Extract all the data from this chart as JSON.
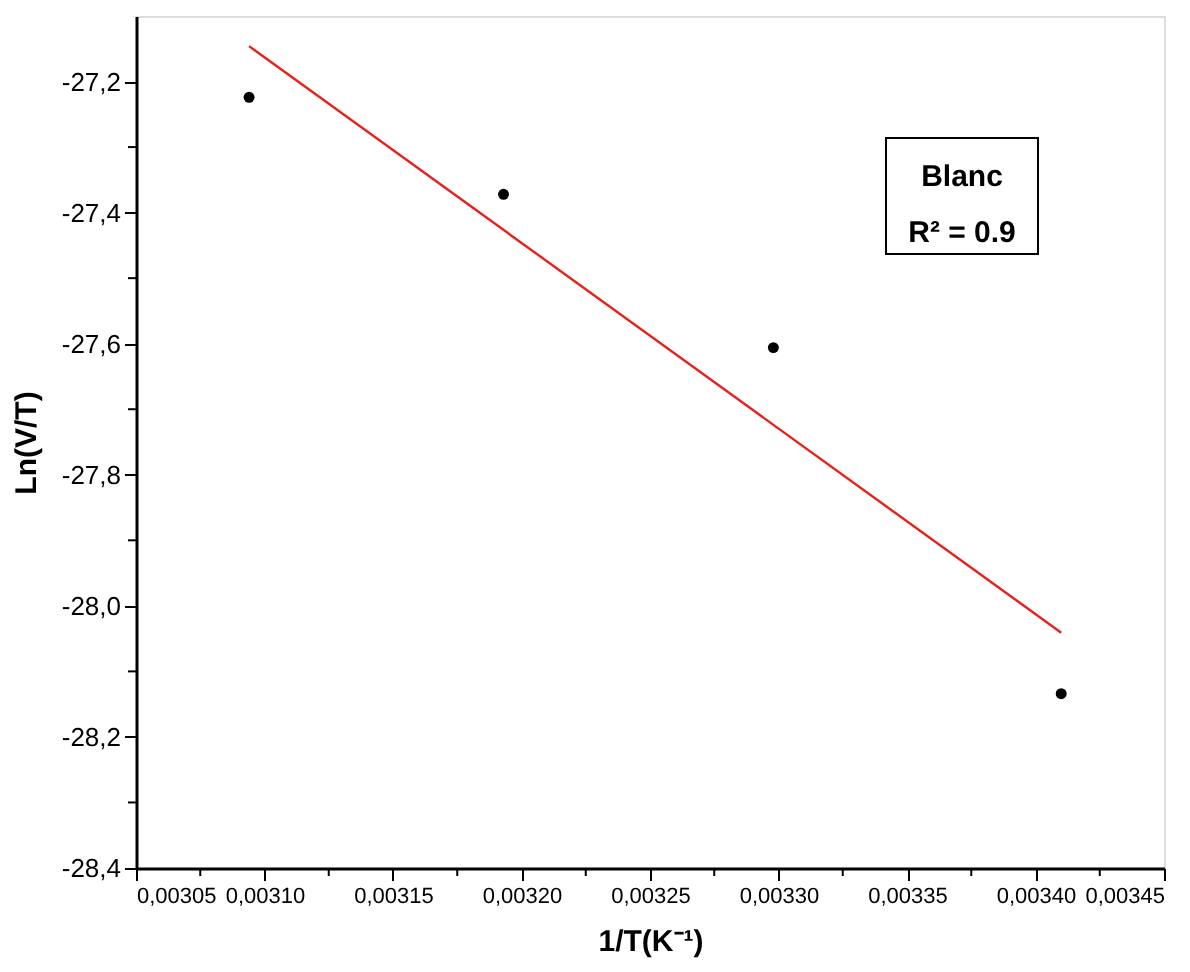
{
  "chart_data": {
    "type": "scatter",
    "xlabel": "1/T(K⁻¹)",
    "ylabel": "Ln(V/T)",
    "x": [
      0.003094,
      0.003193,
      0.003298,
      0.00341
    ],
    "series": [
      {
        "type": "scatter",
        "color": "#000000",
        "marker": "circle",
        "values": [
          -27.224,
          -27.372,
          -27.606,
          -28.134
        ]
      },
      {
        "type": "line",
        "color": "#e8201c",
        "x": [
          0.003094,
          0.00341
        ],
        "values": [
          -27.146,
          -28.041
        ]
      }
    ],
    "xlim": [
      0.00305,
      0.00345
    ],
    "xticks": [
      {
        "value": 0.00305,
        "label": "0,00305"
      },
      {
        "value": 0.003075,
        "label": null
      },
      {
        "value": 0.0031,
        "label": "0,00310"
      },
      {
        "value": 0.003125,
        "label": null
      },
      {
        "value": 0.00315,
        "label": "0,00315"
      },
      {
        "value": 0.003175,
        "label": null
      },
      {
        "value": 0.0032,
        "label": "0,00320"
      },
      {
        "value": 0.003225,
        "label": null
      },
      {
        "value": 0.00325,
        "label": "0,00325"
      },
      {
        "value": 0.003275,
        "label": null
      },
      {
        "value": 0.0033,
        "label": "0,00330"
      },
      {
        "value": 0.003325,
        "label": null
      },
      {
        "value": 0.00335,
        "label": "0,00335"
      },
      {
        "value": 0.003375,
        "label": null
      },
      {
        "value": 0.0034,
        "label": "0,00340"
      },
      {
        "value": 0.003425,
        "label": null
      },
      {
        "value": 0.00345,
        "label": "0,00345"
      }
    ],
    "ylim": [
      -28.4,
      -27.1
    ],
    "yticks": [
      {
        "value": -28.4,
        "label": "-28,4"
      },
      {
        "value": -28.3,
        "label": null
      },
      {
        "value": -28.2,
        "label": "-28,2"
      },
      {
        "value": -28.1,
        "label": null
      },
      {
        "value": -28.0,
        "label": "-28,0"
      },
      {
        "value": -27.9,
        "label": null
      },
      {
        "value": -27.8,
        "label": "-27,8"
      },
      {
        "value": -27.7,
        "label": null
      },
      {
        "value": -27.6,
        "label": "-27,6"
      },
      {
        "value": -27.5,
        "label": null
      },
      {
        "value": -27.4,
        "label": "-27,4"
      },
      {
        "value": -27.3,
        "label": null
      },
      {
        "value": -27.2,
        "label": "-27,2"
      }
    ],
    "annotations": [
      "Blanc",
      "R² = 0.9"
    ],
    "grid": false
  }
}
